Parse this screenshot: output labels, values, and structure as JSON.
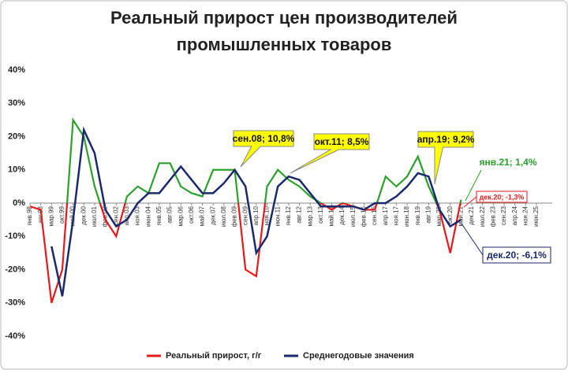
{
  "chart_data": {
    "type": "line",
    "title": [
      "Реальный прирост цен производителей",
      "промышленных товаров"
    ],
    "categories": [
      "янв.98",
      "авг.98",
      "мар.99",
      "окт.99",
      "май.00",
      "дек.00",
      "июл.01",
      "фев.02",
      "сен.02",
      "апр.03",
      "ноя.03",
      "июн.04",
      "янв.05",
      "авг.05",
      "мар.06",
      "окт.06",
      "май.07",
      "дек.07",
      "июл.08",
      "фев.09",
      "сен.09",
      "апр.10",
      "ноя.10",
      "июн.11",
      "янв.12",
      "авг.12",
      "мар.13",
      "окт.13",
      "май.14",
      "дек.14",
      "июл.15",
      "фев.16",
      "сен.16",
      "апр.17",
      "ноя.17",
      "июн.18",
      "янв.19",
      "авг.19",
      "мар.20",
      "окт.20",
      "май.21",
      "дек.21",
      "июл.22",
      "фев.23",
      "сен.23",
      "апр.24",
      "ноя.24",
      "июн.25"
    ],
    "series": [
      {
        "name": "Реальный прирост, г/г",
        "color": "#e8191c",
        "positive_color": "#2ca02c",
        "values": [
          -1,
          -2,
          -30,
          -20,
          25,
          20,
          5,
          -5,
          -10,
          2,
          5,
          3,
          12,
          12,
          5,
          3,
          2,
          10,
          10,
          10,
          -20,
          -22,
          5,
          10,
          7,
          5,
          2,
          0,
          -2,
          0,
          -1,
          -2,
          -2,
          8,
          5,
          8,
          14,
          5,
          -2,
          -15,
          1,
          null,
          null,
          null,
          null,
          null,
          null,
          null
        ]
      },
      {
        "name": "Среднегодовые значения",
        "color": "#1a2a6c",
        "values": [
          null,
          null,
          -13,
          -28,
          -5,
          22,
          15,
          -2,
          -7,
          -5,
          0,
          3,
          3,
          7,
          11,
          7,
          3,
          3,
          6,
          10,
          5,
          -15,
          -10,
          5,
          8,
          7,
          3,
          -1,
          -1,
          -1,
          -1,
          -2,
          0,
          0,
          2,
          5,
          9,
          8,
          -2,
          -7,
          -5,
          null,
          null,
          null,
          null,
          null,
          null,
          null
        ]
      }
    ],
    "ylim": [
      -40,
      40
    ],
    "yticks": [
      {
        "value": -40,
        "label": "-40%"
      },
      {
        "value": -30,
        "label": "-30%"
      },
      {
        "value": -20,
        "label": "-20%"
      },
      {
        "value": -10,
        "label": "-10%"
      },
      {
        "value": 0,
        "label": "0%"
      },
      {
        "value": 10,
        "label": "10%"
      },
      {
        "value": 20,
        "label": "20%"
      },
      {
        "value": 30,
        "label": "30%"
      },
      {
        "value": 40,
        "label": "40%"
      }
    ],
    "grid": false,
    "annotations": [
      {
        "text": "сен.08; 10,8%",
        "color": "#ffff00"
      },
      {
        "text": "окт.11; 8,5%",
        "color": "#ffff00"
      },
      {
        "text": "апр.19; 9,2%",
        "color": "#ffff00"
      },
      {
        "text": "янв.21; 1,4%",
        "color": "#2ca02c"
      },
      {
        "text": "дек.20; -1,3%",
        "color": "#e8191c"
      },
      {
        "text": "дек.20; -6,1%",
        "color": "#1a2a6c"
      }
    ]
  }
}
